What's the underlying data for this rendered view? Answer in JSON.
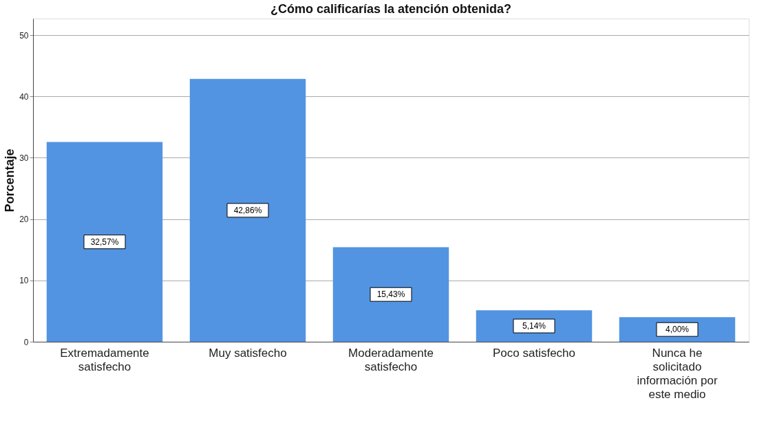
{
  "chart_data": {
    "type": "bar",
    "title": "¿Cómo calificarías la atención obtenida?",
    "ylabel": "Porcentaje",
    "categories": [
      "Extremadamente satisfecho",
      "Muy satisfecho",
      "Moderadamente satisfecho",
      "Poco satisfecho",
      "Nunca he solicitado información por este medio"
    ],
    "values": [
      32.57,
      42.86,
      15.43,
      5.14,
      4.0
    ],
    "value_labels": [
      "32,57%",
      "42,86%",
      "15,43%",
      "5,14%",
      "4,00%"
    ],
    "color": "#5294e2",
    "ylim": [
      0,
      52.7
    ],
    "yticks": [
      0,
      10,
      20,
      30,
      40,
      50
    ],
    "grid": "y"
  }
}
